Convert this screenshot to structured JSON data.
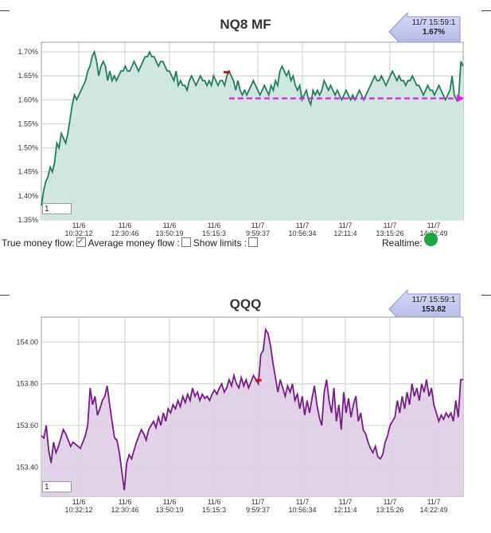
{
  "charts": {
    "top": {
      "title": "NQ8 MF",
      "callout": {
        "time": "11/7 15:59:1",
        "value": "1.67%"
      },
      "input_value": "1"
    },
    "bottom": {
      "title": "QQQ",
      "callout": {
        "time": "11/7 15:59:1",
        "value": "153.82"
      },
      "input_value": "1"
    }
  },
  "controls": {
    "true_money_flow": "True money flow:",
    "true_money_flow_checked": true,
    "average_money_flow": "Average money flow :",
    "average_money_flow_checked": false,
    "show_limits": "Show limits :",
    "show_limits_checked": false,
    "realtime_label": "Realtime:",
    "realtime_color": "#1ea63e"
  },
  "colors": {
    "top_line": "#1e7f5c",
    "top_fill": "#cde5df",
    "bottom_line": "#7a1a8a",
    "bottom_fill": "#e0d0e6",
    "dashed_line": "#e020e0",
    "marker": "#cc1111"
  },
  "chart_data": [
    {
      "type": "area",
      "title": "NQ8 MF",
      "xlabel": "",
      "ylabel": "",
      "x_ticks": [
        {
          "date": "11/6",
          "time": "10:32:12"
        },
        {
          "date": "11/6",
          "time": "12:30:46"
        },
        {
          "date": "11/6",
          "time": "13:50:19"
        },
        {
          "date": "11/6",
          "time": "15:15:3"
        },
        {
          "date": "11/7",
          "time": "9:59:37"
        },
        {
          "date": "11/7",
          "time": "10:56:34"
        },
        {
          "date": "11/7",
          "time": "12:11:4"
        },
        {
          "date": "11/7",
          "time": "13:15:26"
        },
        {
          "date": "11/7",
          "time": "14:22:49"
        }
      ],
      "y_ticks": [
        "1.70%",
        "1.65%",
        "1.60%",
        "1.55%",
        "1.50%",
        "1.45%",
        "1.40%",
        "1.35%"
      ],
      "ylim": [
        1.35,
        1.72
      ],
      "grid": true,
      "reference_line": {
        "value": 1.603,
        "style": "dashed"
      },
      "values": [
        1.38,
        1.41,
        1.43,
        1.44,
        1.46,
        1.45,
        1.47,
        1.51,
        1.5,
        1.53,
        1.52,
        1.51,
        1.53,
        1.56,
        1.59,
        1.61,
        1.6,
        1.61,
        1.62,
        1.63,
        1.64,
        1.66,
        1.67,
        1.69,
        1.7,
        1.68,
        1.65,
        1.67,
        1.68,
        1.67,
        1.64,
        1.66,
        1.64,
        1.65,
        1.64,
        1.65,
        1.66,
        1.66,
        1.67,
        1.66,
        1.66,
        1.67,
        1.68,
        1.67,
        1.66,
        1.67,
        1.68,
        1.69,
        1.69,
        1.7,
        1.69,
        1.69,
        1.68,
        1.67,
        1.68,
        1.68,
        1.67,
        1.66,
        1.66,
        1.65,
        1.64,
        1.66,
        1.63,
        1.64,
        1.63,
        1.63,
        1.62,
        1.64,
        1.65,
        1.64,
        1.63,
        1.64,
        1.65,
        1.64,
        1.64,
        1.63,
        1.64,
        1.63,
        1.65,
        1.64,
        1.63,
        1.64,
        1.64,
        1.63,
        1.65,
        1.66,
        1.65,
        1.64,
        1.62,
        1.64,
        1.62,
        1.61,
        1.62,
        1.61,
        1.62,
        1.63,
        1.64,
        1.63,
        1.62,
        1.61,
        1.62,
        1.63,
        1.62,
        1.61,
        1.63,
        1.62,
        1.64,
        1.63,
        1.66,
        1.67,
        1.66,
        1.65,
        1.66,
        1.64,
        1.65,
        1.63,
        1.62,
        1.63,
        1.6,
        1.61,
        1.62,
        1.6,
        1.59,
        1.62,
        1.61,
        1.62,
        1.61,
        1.62,
        1.64,
        1.63,
        1.62,
        1.63,
        1.62,
        1.61,
        1.62,
        1.61,
        1.6,
        1.61,
        1.62,
        1.61,
        1.6,
        1.61,
        1.6,
        1.61,
        1.62,
        1.61,
        1.6,
        1.61,
        1.62,
        1.63,
        1.64,
        1.65,
        1.64,
        1.64,
        1.65,
        1.64,
        1.63,
        1.64,
        1.65,
        1.66,
        1.65,
        1.64,
        1.65,
        1.64,
        1.64,
        1.63,
        1.64,
        1.64,
        1.65,
        1.64,
        1.63,
        1.63,
        1.62,
        1.61,
        1.62,
        1.63,
        1.62,
        1.62,
        1.61,
        1.62,
        1.63,
        1.62,
        1.61,
        1.6,
        1.61,
        1.62,
        1.65,
        1.61,
        1.6,
        1.61,
        1.68,
        1.67
      ]
    },
    {
      "type": "area",
      "title": "QQQ",
      "xlabel": "",
      "ylabel": "",
      "x_ticks": [
        {
          "date": "11/6",
          "time": "10:32:12"
        },
        {
          "date": "11/6",
          "time": "12:30:46"
        },
        {
          "date": "11/6",
          "time": "13:50:19"
        },
        {
          "date": "11/6",
          "time": "15:15:3"
        },
        {
          "date": "11/7",
          "time": "9:59:37"
        },
        {
          "date": "11/7",
          "time": "10:56:34"
        },
        {
          "date": "11/7",
          "time": "12:11:4"
        },
        {
          "date": "11/7",
          "time": "13:15:26"
        },
        {
          "date": "11/7",
          "time": "14:22:49"
        }
      ],
      "y_ticks": [
        "154.00",
        "153.80",
        "153.60",
        "153.40"
      ],
      "ylim": [
        153.26,
        154.12
      ],
      "grid": true,
      "values": [
        153.55,
        153.54,
        153.6,
        153.48,
        153.42,
        153.52,
        153.47,
        153.5,
        153.54,
        153.58,
        153.56,
        153.53,
        153.5,
        153.52,
        153.51,
        153.5,
        153.49,
        153.52,
        153.55,
        153.6,
        153.78,
        153.7,
        153.74,
        153.65,
        153.68,
        153.72,
        153.74,
        153.79,
        153.7,
        153.62,
        153.54,
        153.53,
        153.47,
        153.38,
        153.29,
        153.42,
        153.46,
        153.44,
        153.48,
        153.52,
        153.55,
        153.58,
        153.56,
        153.53,
        153.58,
        153.6,
        153.62,
        153.59,
        153.64,
        153.6,
        153.66,
        153.62,
        153.68,
        153.66,
        153.7,
        153.68,
        153.72,
        153.69,
        153.74,
        153.71,
        153.75,
        153.72,
        153.78,
        153.74,
        153.76,
        153.72,
        153.75,
        153.73,
        153.74,
        153.72,
        153.75,
        153.77,
        153.75,
        153.78,
        153.8,
        153.76,
        153.78,
        153.82,
        153.79,
        153.84,
        153.8,
        153.78,
        153.83,
        153.79,
        153.82,
        153.78,
        153.81,
        153.84,
        153.82,
        153.8,
        153.94,
        153.96,
        154.06,
        154.04,
        153.98,
        153.9,
        153.83,
        153.76,
        153.82,
        153.78,
        153.74,
        153.79,
        153.76,
        153.8,
        153.72,
        153.75,
        153.68,
        153.74,
        153.65,
        153.72,
        153.66,
        153.73,
        153.79,
        153.7,
        153.64,
        153.6,
        153.76,
        153.82,
        153.72,
        153.66,
        153.78,
        153.62,
        153.7,
        153.58,
        153.76,
        153.66,
        153.73,
        153.64,
        153.7,
        153.74,
        153.62,
        153.66,
        153.58,
        153.56,
        153.52,
        153.49,
        153.47,
        153.5,
        153.45,
        153.44,
        153.46,
        153.52,
        153.55,
        153.6,
        153.62,
        153.64,
        153.72,
        153.66,
        153.74,
        153.68,
        153.76,
        153.7,
        153.8,
        153.74,
        153.78,
        153.72,
        153.8,
        153.76,
        153.82,
        153.74,
        153.78,
        153.7,
        153.66,
        153.62,
        153.65,
        153.63,
        153.66,
        153.64,
        153.66,
        153.62,
        153.72,
        153.64,
        153.82,
        153.82
      ]
    }
  ]
}
